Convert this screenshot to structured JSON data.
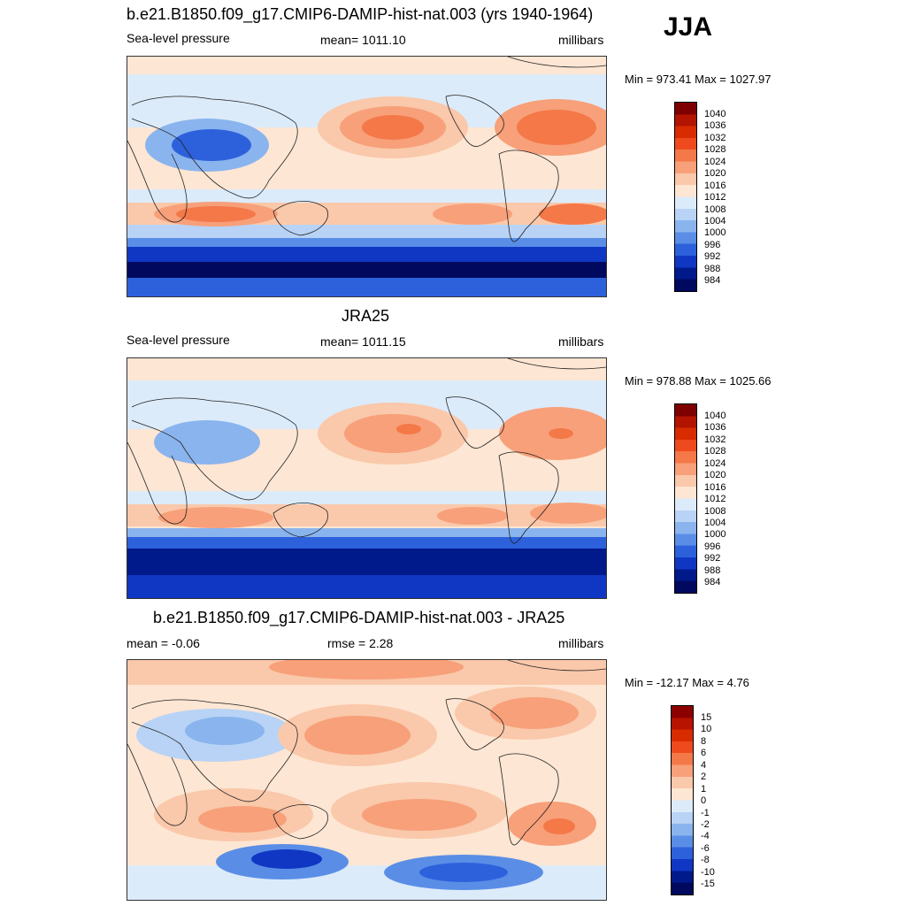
{
  "season": "JJA",
  "panels": [
    {
      "title": "b.e21.B1850.f09_g17.CMIP6-DAMIP-hist-nat.003 (yrs 1940-1964)",
      "left_label": "Sea-level pressure",
      "center_label": "mean= 1011.10",
      "right_label": "millibars",
      "minmax": "Min = 973.41 Max = 1027.97"
    },
    {
      "title": "JRA25",
      "left_label": "Sea-level pressure",
      "center_label": "mean= 1011.15",
      "right_label": "millibars",
      "minmax": "Min = 978.88 Max = 1025.66"
    },
    {
      "title": "b.e21.B1850.f09_g17.CMIP6-DAMIP-hist-nat.003 - JRA25",
      "left_label": "mean =  -0.06",
      "center_label": "rmse =   2.28",
      "right_label": "millibars",
      "minmax": "Min = -12.17 Max =   4.76"
    }
  ],
  "colorbar_slp": {
    "labels": [
      "1040",
      "1036",
      "1032",
      "1028",
      "1024",
      "1020",
      "1016",
      "1012",
      "1008",
      "1004",
      "1000",
      "996",
      "992",
      "988",
      "984"
    ],
    "colors": [
      "#7f0000",
      "#b31400",
      "#d92b00",
      "#ee4a1e",
      "#f47848",
      "#f7a07a",
      "#fac8aa",
      "#fde6d3",
      "#dcebfa",
      "#b8d3f5",
      "#8ab4ee",
      "#5a8ee6",
      "#2d61dc",
      "#1037c4",
      "#001a8c",
      "#00095e"
    ]
  },
  "colorbar_diff": {
    "labels": [
      "15",
      "10",
      "8",
      "6",
      "4",
      "2",
      "1",
      "0",
      "-1",
      "-2",
      "-4",
      "-6",
      "-8",
      "-10",
      "-15"
    ],
    "colors": [
      "#8c0000",
      "#b81200",
      "#d92b00",
      "#ee4a1e",
      "#f47848",
      "#f7a07a",
      "#fac8aa",
      "#fde6d3",
      "#dcebfa",
      "#b8d3f5",
      "#8ab4ee",
      "#5a8ee6",
      "#2d61dc",
      "#1037c4",
      "#001a8c",
      "#00095e"
    ]
  }
}
